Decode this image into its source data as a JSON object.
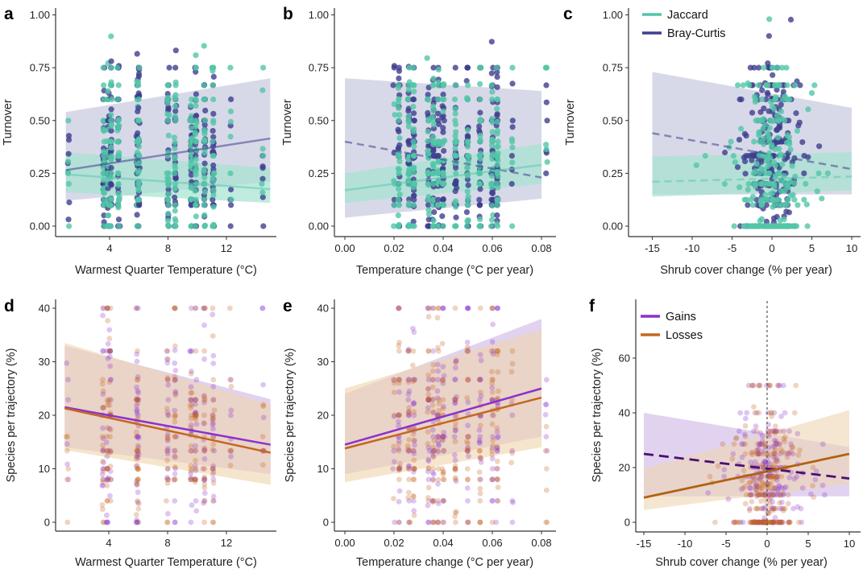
{
  "chart_data": [
    {
      "id": "a",
      "type": "scatter",
      "letter": "a",
      "xlabel": "Warmest Quarter Temperature (°C)",
      "ylabel": "Turnover",
      "xlim": [
        0.7,
        15
      ],
      "ylim": [
        0,
        1
      ],
      "xticks": [
        "4",
        "8",
        "12"
      ],
      "xtick_values": [
        4,
        8,
        12
      ],
      "yticks": [
        "0.00",
        "0.25",
        "0.50",
        "0.75",
        "1.00"
      ],
      "ytick_values": [
        0,
        0.25,
        0.5,
        0.75,
        1
      ],
      "point_x_clusters": [
        1.2,
        3.6,
        3.9,
        4.1,
        4.6,
        5.9,
        6.0,
        8.0,
        8.5,
        9.6,
        9.9,
        10.5,
        11.1,
        12.3,
        14.5
      ],
      "series": [
        {
          "name": "Bray-Curtis",
          "color": "#3e3f8f",
          "band_color": "#c8c9de",
          "dashed": false,
          "x": [
            1,
            15
          ],
          "fit": [
            0.265,
            0.415
          ],
          "lower": [
            0.12,
            0.21
          ],
          "upper": [
            0.54,
            0.7
          ]
        },
        {
          "name": "Jaccard",
          "color": "#52c5a8",
          "band_color": "#a5e2d2",
          "dashed": false,
          "x": [
            1,
            15
          ],
          "fit": [
            0.245,
            0.175
          ],
          "lower": [
            0.16,
            0.11
          ],
          "upper": [
            0.35,
            0.275
          ]
        }
      ]
    },
    {
      "id": "b",
      "type": "scatter",
      "letter": "b",
      "xlabel": "Temperature change (°C per year)",
      "ylabel": "Turnover",
      "xlim": [
        -0.002,
        0.085
      ],
      "ylim": [
        0,
        1
      ],
      "xticks": [
        "0.00",
        "0.02",
        "0.04",
        "0.06",
        "0.08"
      ],
      "xtick_values": [
        0,
        0.02,
        0.04,
        0.06,
        0.08
      ],
      "yticks": [
        "0.00",
        "0.25",
        "0.50",
        "0.75",
        "1.00"
      ],
      "ytick_values": [
        0,
        0.25,
        0.5,
        0.75,
        1
      ],
      "point_x_clusters": [
        0.02,
        0.022,
        0.026,
        0.028,
        0.034,
        0.036,
        0.038,
        0.04,
        0.045,
        0.05,
        0.055,
        0.06,
        0.062,
        0.068,
        0.082
      ],
      "series": [
        {
          "name": "Bray-Curtis",
          "color": "#3e3f8f",
          "band_color": "#c8c9de",
          "dashed": true,
          "x": [
            0,
            0.08
          ],
          "fit": [
            0.4,
            0.23
          ],
          "lower": [
            0.04,
            0.13
          ],
          "upper": [
            0.7,
            0.64
          ]
        },
        {
          "name": "Jaccard",
          "color": "#52c5a8",
          "band_color": "#a5e2d2",
          "dashed": false,
          "x": [
            0,
            0.08
          ],
          "fit": [
            0.17,
            0.29
          ],
          "lower": [
            0.11,
            0.2
          ],
          "upper": [
            0.25,
            0.39
          ]
        }
      ]
    },
    {
      "id": "c",
      "type": "scatter",
      "letter": "c",
      "xlabel": "Shrub cover change (% per year)",
      "ylabel": "Turnover",
      "xlim": [
        -16.5,
        11
      ],
      "ylim": [
        0,
        1
      ],
      "xticks": [
        "-15",
        "-10",
        "-5",
        "0",
        "5",
        "10"
      ],
      "xtick_values": [
        -15,
        -10,
        -5,
        0,
        5,
        10
      ],
      "yticks": [
        "0.00",
        "0.25",
        "0.50",
        "0.75",
        "1.00"
      ],
      "ytick_values": [
        0,
        0.25,
        0.5,
        0.75,
        1
      ],
      "legend": {
        "position": "top-left",
        "entries": [
          "Jaccard",
          "Bray-Curtis"
        ]
      },
      "series": [
        {
          "name": "Bray-Curtis",
          "color": "#3e3f8f",
          "band_color": "#c8c9de",
          "dashed": true,
          "x": [
            -15,
            10
          ],
          "fit": [
            0.44,
            0.27
          ],
          "lower": [
            0.15,
            0.15
          ],
          "upper": [
            0.73,
            0.56
          ]
        },
        {
          "name": "Jaccard",
          "color": "#52c5a8",
          "band_color": "#a5e2d2",
          "dashed": true,
          "x": [
            -15,
            10
          ],
          "fit": [
            0.21,
            0.235
          ],
          "lower": [
            0.14,
            0.17
          ],
          "upper": [
            0.33,
            0.35
          ]
        }
      ]
    },
    {
      "id": "d",
      "type": "scatter",
      "letter": "d",
      "xlabel": "Warmest Quarter Temperature (°C)",
      "ylabel": "Species per trajectory (%)",
      "xlim": [
        0.7,
        15
      ],
      "ylim": [
        0,
        40
      ],
      "xticks": [
        "4",
        "8",
        "12"
      ],
      "xtick_values": [
        4,
        8,
        12
      ],
      "yticks": [
        "0",
        "10",
        "20",
        "30",
        "40"
      ],
      "ytick_values": [
        0,
        10,
        20,
        30,
        40
      ],
      "point_x_clusters": [
        1.2,
        3.6,
        3.9,
        4.1,
        5.9,
        6.0,
        8.0,
        8.5,
        9.6,
        9.9,
        10.5,
        11.1,
        12.3,
        14.5
      ],
      "series": [
        {
          "name": "Gains",
          "color": "#8a32d0",
          "band_color": "#cdb6e4",
          "dashed": false,
          "x": [
            1,
            15
          ],
          "fit": [
            21.5,
            14.5
          ],
          "lower": [
            14,
            9
          ],
          "upper": [
            33,
            23
          ]
        },
        {
          "name": "Losses",
          "color": "#c4661f",
          "band_color": "#f0d3ac",
          "dashed": false,
          "x": [
            1,
            15
          ],
          "fit": [
            21.3,
            13
          ],
          "lower": [
            13.5,
            7
          ],
          "upper": [
            33.5,
            22
          ]
        }
      ]
    },
    {
      "id": "e",
      "type": "scatter",
      "letter": "e",
      "xlabel": "Temperature change (°C per year)",
      "ylabel": "Species per trajectory (%)",
      "xlim": [
        -0.002,
        0.085
      ],
      "ylim": [
        0,
        40
      ],
      "xticks": [
        "0.00",
        "0.02",
        "0.04",
        "0.06",
        "0.08"
      ],
      "xtick_values": [
        0,
        0.02,
        0.04,
        0.06,
        0.08
      ],
      "yticks": [
        "0",
        "10",
        "20",
        "30",
        "40"
      ],
      "ytick_values": [
        0,
        10,
        20,
        30,
        40
      ],
      "point_x_clusters": [
        0.02,
        0.022,
        0.026,
        0.028,
        0.034,
        0.036,
        0.038,
        0.04,
        0.045,
        0.05,
        0.055,
        0.06,
        0.062,
        0.068,
        0.082
      ],
      "series": [
        {
          "name": "Gains",
          "color": "#8a32d0",
          "band_color": "#cdb6e4",
          "dashed": false,
          "x": [
            0,
            0.08
          ],
          "fit": [
            14.5,
            25
          ],
          "lower": [
            9,
            16
          ],
          "upper": [
            24,
            38
          ]
        },
        {
          "name": "Losses",
          "color": "#c4661f",
          "band_color": "#f0d3ac",
          "dashed": false,
          "x": [
            0,
            0.08
          ],
          "fit": [
            13.8,
            23.3
          ],
          "lower": [
            7.5,
            14
          ],
          "upper": [
            25,
            36
          ]
        }
      ]
    },
    {
      "id": "f",
      "type": "scatter",
      "letter": "f",
      "xlabel": "Shrub cover change (% per year)",
      "ylabel": "Species per trajectory (%)",
      "xlim": [
        -16.5,
        11
      ],
      "ylim": [
        0,
        75
      ],
      "xticks": [
        "-15",
        "-10",
        "-5",
        "0",
        "5",
        "10"
      ],
      "xtick_values": [
        -15,
        -10,
        -5,
        0,
        5,
        10
      ],
      "yticks": [
        "0",
        "20",
        "40",
        "60"
      ],
      "ytick_values": [
        0,
        20,
        40,
        60
      ],
      "reference_line_x": 0,
      "legend": {
        "position": "top-left",
        "entries": [
          "Gains",
          "Losses"
        ]
      },
      "series": [
        {
          "name": "Gains",
          "color": "#4a1070",
          "legend_color": "#8a32d0",
          "band_color": "#cdb6e4",
          "dashed": true,
          "x": [
            -15,
            10
          ],
          "fit": [
            25,
            16
          ],
          "lower": [
            9.5,
            9.5
          ],
          "upper": [
            40,
            27.5
          ]
        },
        {
          "name": "Losses",
          "color": "#b2620f",
          "legend_color": "#c4661f",
          "band_color": "#efd6b4",
          "dashed": false,
          "x": [
            -15,
            10
          ],
          "fit": [
            9,
            25
          ],
          "lower": [
            4.5,
            14
          ],
          "upper": [
            19.5,
            41
          ]
        }
      ]
    }
  ]
}
